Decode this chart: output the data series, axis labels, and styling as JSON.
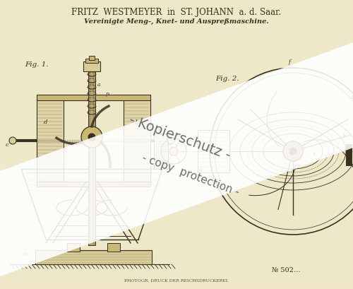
{
  "bg_color": "#f0e8c8",
  "page_color": "#ede4c0",
  "title_line1": "FRITZ  WESTMEYER  in  ST. JOHANN  a. d. Saar.",
  "title_line2": "Vereinigte Meng-, Knet- und Auspreßmaschine.",
  "fig1_label": "Fig. 1.",
  "fig2_label": "Fig. 2.",
  "patent_number": "№ 502…",
  "footer_text": "PHOTOGR. DRUCK DER REICHSDRUCKEREI.",
  "watermark_line1": "- Kopierschutz -",
  "watermark_line2": "- copy  protection -",
  "line_color": "#3a3020",
  "fill_light": "#d8cc98",
  "fill_medium": "#c8b878",
  "hatch_color": "#9a8a60"
}
